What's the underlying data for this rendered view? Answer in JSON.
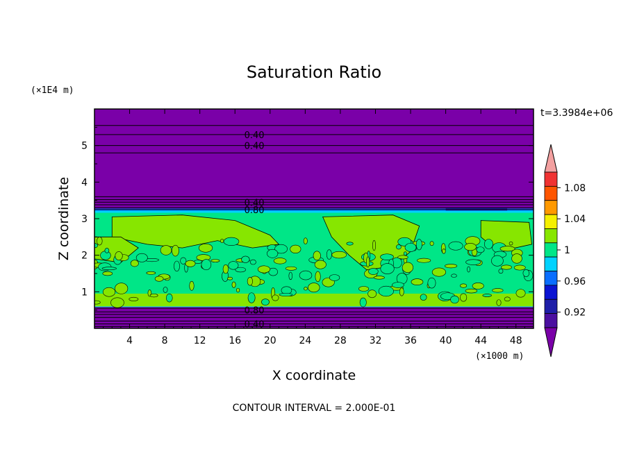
{
  "chart_data": {
    "type": "contour",
    "title": "Saturation Ratio",
    "xlabel": "X coordinate",
    "ylabel": "Z coordinate",
    "x_unit": "(×1000 m)",
    "y_unit": "(×1E4 m)",
    "time_label": "t=3.3984e+06",
    "footer": "CONTOUR INTERVAL = 2.000E-01",
    "xlim": [
      0,
      50
    ],
    "ylim": [
      0,
      6
    ],
    "x_ticks": [
      4,
      8,
      12,
      16,
      20,
      24,
      28,
      32,
      36,
      40,
      44,
      48
    ],
    "y_ticks": [
      1,
      2,
      3,
      4,
      5
    ],
    "contour_interval": 0.2,
    "colorbar": {
      "labels": [
        "1.08",
        "1.04",
        "1",
        "0.96",
        "0.92"
      ],
      "label_values": [
        1.08,
        1.04,
        1.0,
        0.96,
        0.92
      ],
      "levels": [
        0.9,
        0.92,
        0.94,
        0.96,
        0.98,
        1.0,
        1.02,
        1.04,
        1.06,
        1.08,
        1.1
      ],
      "colors": [
        "#4b0fa0",
        "#1e1ea8",
        "#0a14d2",
        "#0a6eff",
        "#00d2ff",
        "#00e687",
        "#87e600",
        "#f5f000",
        "#ff9900",
        "#ff5500",
        "#f03232"
      ],
      "under_color": "#7a00a8",
      "over_color": "#f3a0a0"
    },
    "contour_labels": [
      {
        "text": "0.40",
        "z": 5.3
      },
      {
        "text": "0.40",
        "z": 5.0
      },
      {
        "text": "0.40",
        "z": 3.45
      },
      {
        "text": "0.80",
        "z": 3.25
      },
      {
        "text": "0.80",
        "z": 0.5
      },
      {
        "text": "0.40",
        "z": 0.12
      }
    ],
    "layers": {
      "upper_dry_bottom": 3.2,
      "lower_dry_top": 0.6,
      "dry_contours_z": [
        0.05,
        0.12,
        0.2,
        0.3,
        0.38,
        0.45,
        0.55,
        3.25,
        3.3,
        3.38,
        3.45,
        3.52,
        3.6,
        4.8,
        5.0,
        5.3,
        5.55
      ]
    }
  }
}
